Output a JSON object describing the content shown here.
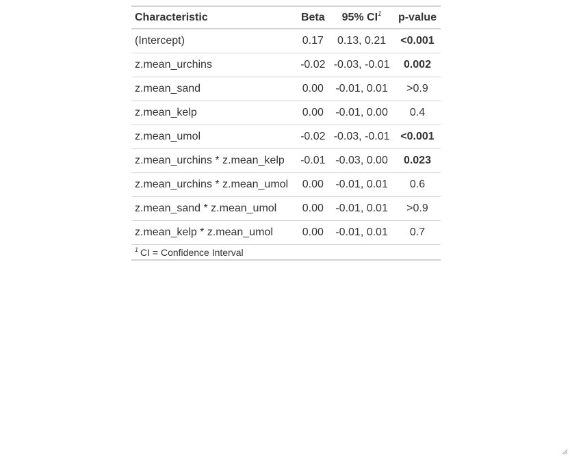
{
  "table": {
    "headers": {
      "characteristic": "Characteristic",
      "beta": "Beta",
      "ci": "95% CI",
      "ci_footnote_mark": "1",
      "pvalue": "p-value"
    },
    "rows": [
      {
        "characteristic": "(Intercept)",
        "beta": "0.17",
        "ci": "0.13, 0.21",
        "pvalue": "<0.001",
        "significant": true
      },
      {
        "characteristic": "z.mean_urchins",
        "beta": "-0.02",
        "ci": "-0.03, -0.01",
        "pvalue": "0.002",
        "significant": true
      },
      {
        "characteristic": "z.mean_sand",
        "beta": "0.00",
        "ci": "-0.01, 0.01",
        "pvalue": ">0.9",
        "significant": false
      },
      {
        "characteristic": "z.mean_kelp",
        "beta": "0.00",
        "ci": "-0.01, 0.00",
        "pvalue": "0.4",
        "significant": false
      },
      {
        "characteristic": "z.mean_umol",
        "beta": "-0.02",
        "ci": "-0.03, -0.01",
        "pvalue": "<0.001",
        "significant": true
      },
      {
        "characteristic": "z.mean_urchins * z.mean_kelp",
        "beta": "-0.01",
        "ci": "-0.03, 0.00",
        "pvalue": "0.023",
        "significant": true
      },
      {
        "characteristic": "z.mean_urchins * z.mean_umol",
        "beta": "0.00",
        "ci": "-0.01, 0.01",
        "pvalue": "0.6",
        "significant": false
      },
      {
        "characteristic": "z.mean_sand * z.mean_umol",
        "beta": "0.00",
        "ci": "-0.01, 0.01",
        "pvalue": ">0.9",
        "significant": false
      },
      {
        "characteristic": "z.mean_kelp * z.mean_umol",
        "beta": "0.00",
        "ci": "-0.01, 0.01",
        "pvalue": "0.7",
        "significant": false
      }
    ],
    "footnote": {
      "mark": "1",
      "text": "CI = Confidence Interval"
    }
  },
  "colors": {
    "text": "#333333",
    "rule": "#d3d3d3"
  }
}
